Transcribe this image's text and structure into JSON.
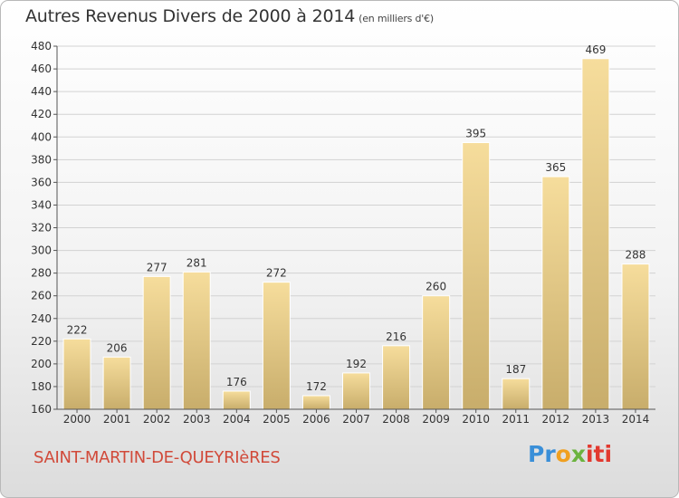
{
  "header": {
    "title": "Autres Revenus Divers de 2000 à 2014",
    "subtitle": "(en milliers d'€)"
  },
  "footer": {
    "commune": "SAINT-MARTIN-DE-QUEYRIèRES",
    "logo_parts": [
      "Pr",
      "o",
      "x",
      "iti"
    ]
  },
  "colors": {
    "bar_light": "#f6dd9c",
    "bar_dark": "#c8ad6b",
    "grid": "#d2d2d2",
    "text": "#333333",
    "commune": "#d14a3a"
  },
  "chart_data": {
    "type": "bar",
    "title": "Autres Revenus Divers de 2000 à 2014",
    "subtitle": "(en milliers d'€)",
    "categories": [
      "2000",
      "2001",
      "2002",
      "2003",
      "2004",
      "2005",
      "2006",
      "2007",
      "2008",
      "2009",
      "2010",
      "2011",
      "2012",
      "2013",
      "2014"
    ],
    "values": [
      222,
      206,
      277,
      281,
      176,
      272,
      172,
      192,
      216,
      260,
      395,
      187,
      365,
      469,
      288
    ],
    "ylim": [
      160,
      480
    ],
    "yticks": [
      160,
      180,
      200,
      220,
      240,
      260,
      280,
      300,
      320,
      340,
      360,
      380,
      400,
      420,
      440,
      460,
      480
    ],
    "grid": true,
    "data_labels": true
  }
}
